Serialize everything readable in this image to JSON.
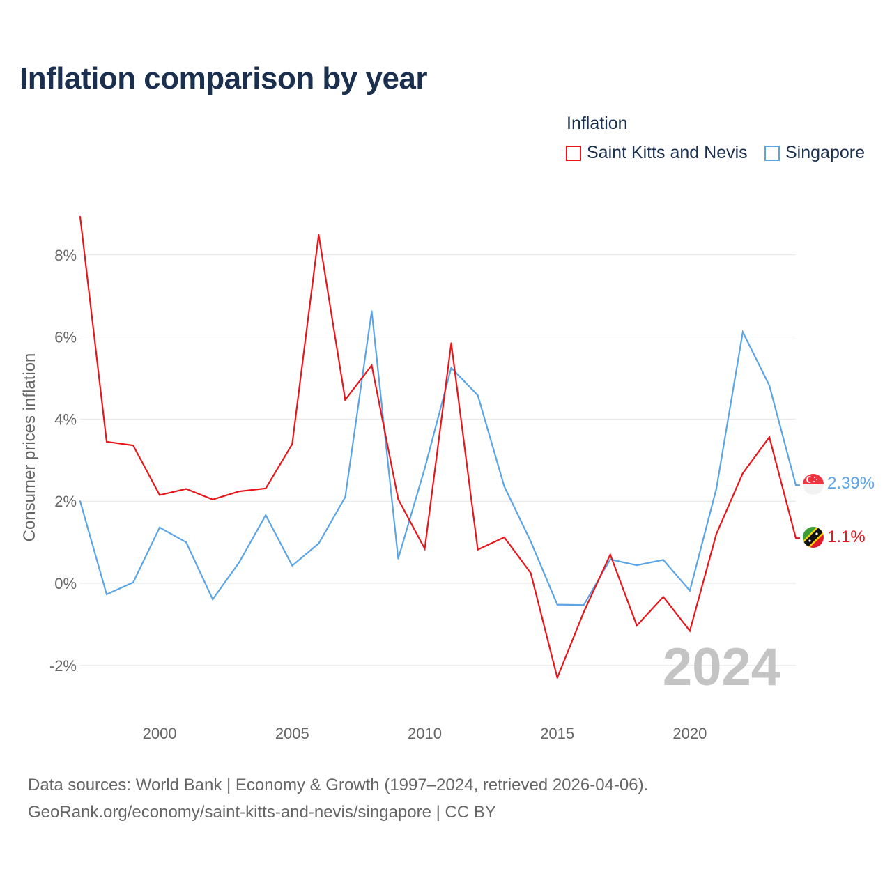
{
  "title": "Inflation comparison by year",
  "legend": {
    "title": "Inflation",
    "items": [
      {
        "label": "Saint Kitts and Nevis",
        "color": "#e8161b"
      },
      {
        "label": "Singapore",
        "color": "#5ba4e5"
      }
    ]
  },
  "chart_data": {
    "type": "line",
    "title": "Inflation comparison by year",
    "xlabel": "",
    "ylabel": "Consumer prices inflation",
    "xlim": [
      1997,
      2024
    ],
    "ylim": [
      -3,
      9
    ],
    "y_ticks": [
      -2,
      0,
      2,
      4,
      6,
      8
    ],
    "y_tick_labels": [
      "-2%",
      "0%",
      "2%",
      "4%",
      "6%",
      "8%"
    ],
    "x_ticks": [
      2000,
      2005,
      2010,
      2015,
      2020
    ],
    "x_tick_labels": [
      "2000",
      "2005",
      "2010",
      "2015",
      "2020"
    ],
    "grid": true,
    "watermark_year": "2024",
    "x": [
      1997,
      1998,
      1999,
      2000,
      2001,
      2002,
      2003,
      2004,
      2005,
      2006,
      2007,
      2008,
      2009,
      2010,
      2011,
      2012,
      2013,
      2014,
      2015,
      2016,
      2017,
      2018,
      2019,
      2020,
      2021,
      2022,
      2023,
      2024
    ],
    "series": [
      {
        "name": "Saint Kitts and Nevis",
        "color": "#e8161b",
        "end_label": "1.1%",
        "values": [
          8.93,
          3.45,
          3.36,
          2.15,
          2.3,
          2.04,
          2.24,
          2.31,
          3.39,
          8.49,
          4.47,
          5.31,
          2.05,
          0.84,
          5.85,
          0.82,
          1.12,
          0.25,
          -2.3,
          -0.7,
          0.7,
          -1.03,
          -0.33,
          -1.16,
          1.2,
          2.68,
          3.56,
          1.1
        ]
      },
      {
        "name": "Singapore",
        "color": "#5ba4e5",
        "end_label": "2.39%",
        "values": [
          2.0,
          -0.27,
          0.02,
          1.36,
          1.0,
          -0.39,
          0.51,
          1.66,
          0.43,
          0.97,
          2.1,
          6.63,
          0.6,
          2.8,
          5.25,
          4.58,
          2.36,
          1.02,
          -0.52,
          -0.53,
          0.58,
          0.44,
          0.57,
          -0.18,
          2.3,
          6.12,
          4.82,
          2.39
        ]
      }
    ]
  },
  "source": {
    "line1": "Data sources: World Bank | Economy & Growth (1997–2024, retrieved 2026-04-06).",
    "line2": "GeoRank.org/economy/saint-kitts-and-nevis/singapore | CC BY"
  }
}
